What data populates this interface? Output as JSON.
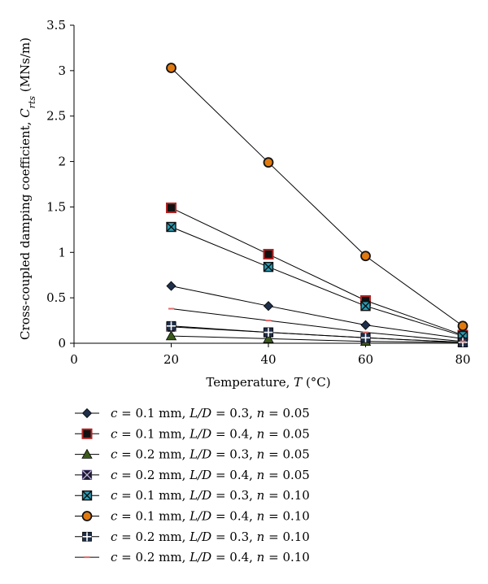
{
  "chart_data": {
    "type": "line",
    "xlabel": "Temperature, T (°C)",
    "xlabel_parts": {
      "pre": "Temperature, ",
      "var": "T",
      "post": " (°C)"
    },
    "ylabel": "Cross-coupled damping coefficient, C_rts (MNs/m)",
    "ylabel_parts": {
      "pre": "Cross-coupled damping coefficient, ",
      "var": "C",
      "sub": "rts",
      "post": " (MNs/m)"
    },
    "xlim": [
      0,
      80
    ],
    "ylim": [
      0,
      3.5
    ],
    "x_ticks": [
      0,
      20,
      40,
      60,
      80
    ],
    "x_tick_labels": [
      "0",
      "20",
      "40",
      "60",
      "80"
    ],
    "y_ticks": [
      0,
      0.5,
      1,
      1.5,
      2,
      2.5,
      3,
      3.5
    ],
    "y_tick_labels": [
      "0",
      "0.5",
      "1",
      "1.5",
      "2",
      "2.5",
      "3",
      "3.5"
    ],
    "grid": false,
    "legend_position": "bottom",
    "x": [
      20,
      40,
      60,
      80
    ],
    "series": [
      {
        "name": "c = 0.1 mm, L/D = 0.3, n = 0.05",
        "label_parts": [
          "0.1 mm",
          "0.3",
          "0.05"
        ],
        "marker": "diamond",
        "color": "#1f2f4a",
        "values": [
          0.63,
          0.41,
          0.2,
          0.05
        ]
      },
      {
        "name": "c = 0.1 mm, L/D = 0.4, n = 0.05",
        "label_parts": [
          "0.1 mm",
          "0.4",
          "0.05"
        ],
        "marker": "square",
        "color": "#b22222",
        "values": [
          1.49,
          0.98,
          0.47,
          0.09
        ]
      },
      {
        "name": "c = 0.2 mm, L/D = 0.3, n = 0.05",
        "label_parts": [
          "0.2 mm",
          "0.3",
          "0.05"
        ],
        "marker": "triangle",
        "color": "#3b5a1a",
        "values": [
          0.08,
          0.05,
          0.02,
          0.01
        ]
      },
      {
        "name": "c = 0.2 mm, L/D = 0.4, n = 0.05",
        "label_parts": [
          "0.2 mm",
          "0.4",
          "0.05"
        ],
        "marker": "xsquare",
        "color": "#3a2a5a",
        "values": [
          0.18,
          0.12,
          0.06,
          0.01
        ]
      },
      {
        "name": "c = 0.1 mm, L/D = 0.3, n = 0.10",
        "label_parts": [
          "0.1 mm",
          "0.3",
          "0.10"
        ],
        "marker": "asterisk",
        "color": "#2a9db5",
        "values": [
          1.28,
          0.84,
          0.41,
          0.08
        ]
      },
      {
        "name": "c = 0.1 mm, L/D = 0.4, n = 0.10",
        "label_parts": [
          "0.1 mm",
          "0.4",
          "0.10"
        ],
        "marker": "circle",
        "color": "#e07a10",
        "values": [
          3.03,
          1.99,
          0.96,
          0.19
        ]
      },
      {
        "name": "c = 0.2 mm, L/D = 0.3, n = 0.10",
        "label_parts": [
          "0.2 mm",
          "0.3",
          "0.10"
        ],
        "marker": "plus",
        "color": "#1f2f4a",
        "values": [
          0.19,
          0.12,
          0.06,
          0.01
        ]
      },
      {
        "name": "c = 0.2 mm, L/D = 0.4, n = 0.10",
        "label_parts": [
          "0.2 mm",
          "0.4",
          "0.10"
        ],
        "marker": "dash",
        "color": "#e06a6a",
        "values": [
          0.38,
          0.25,
          0.12,
          0.02
        ]
      }
    ]
  }
}
